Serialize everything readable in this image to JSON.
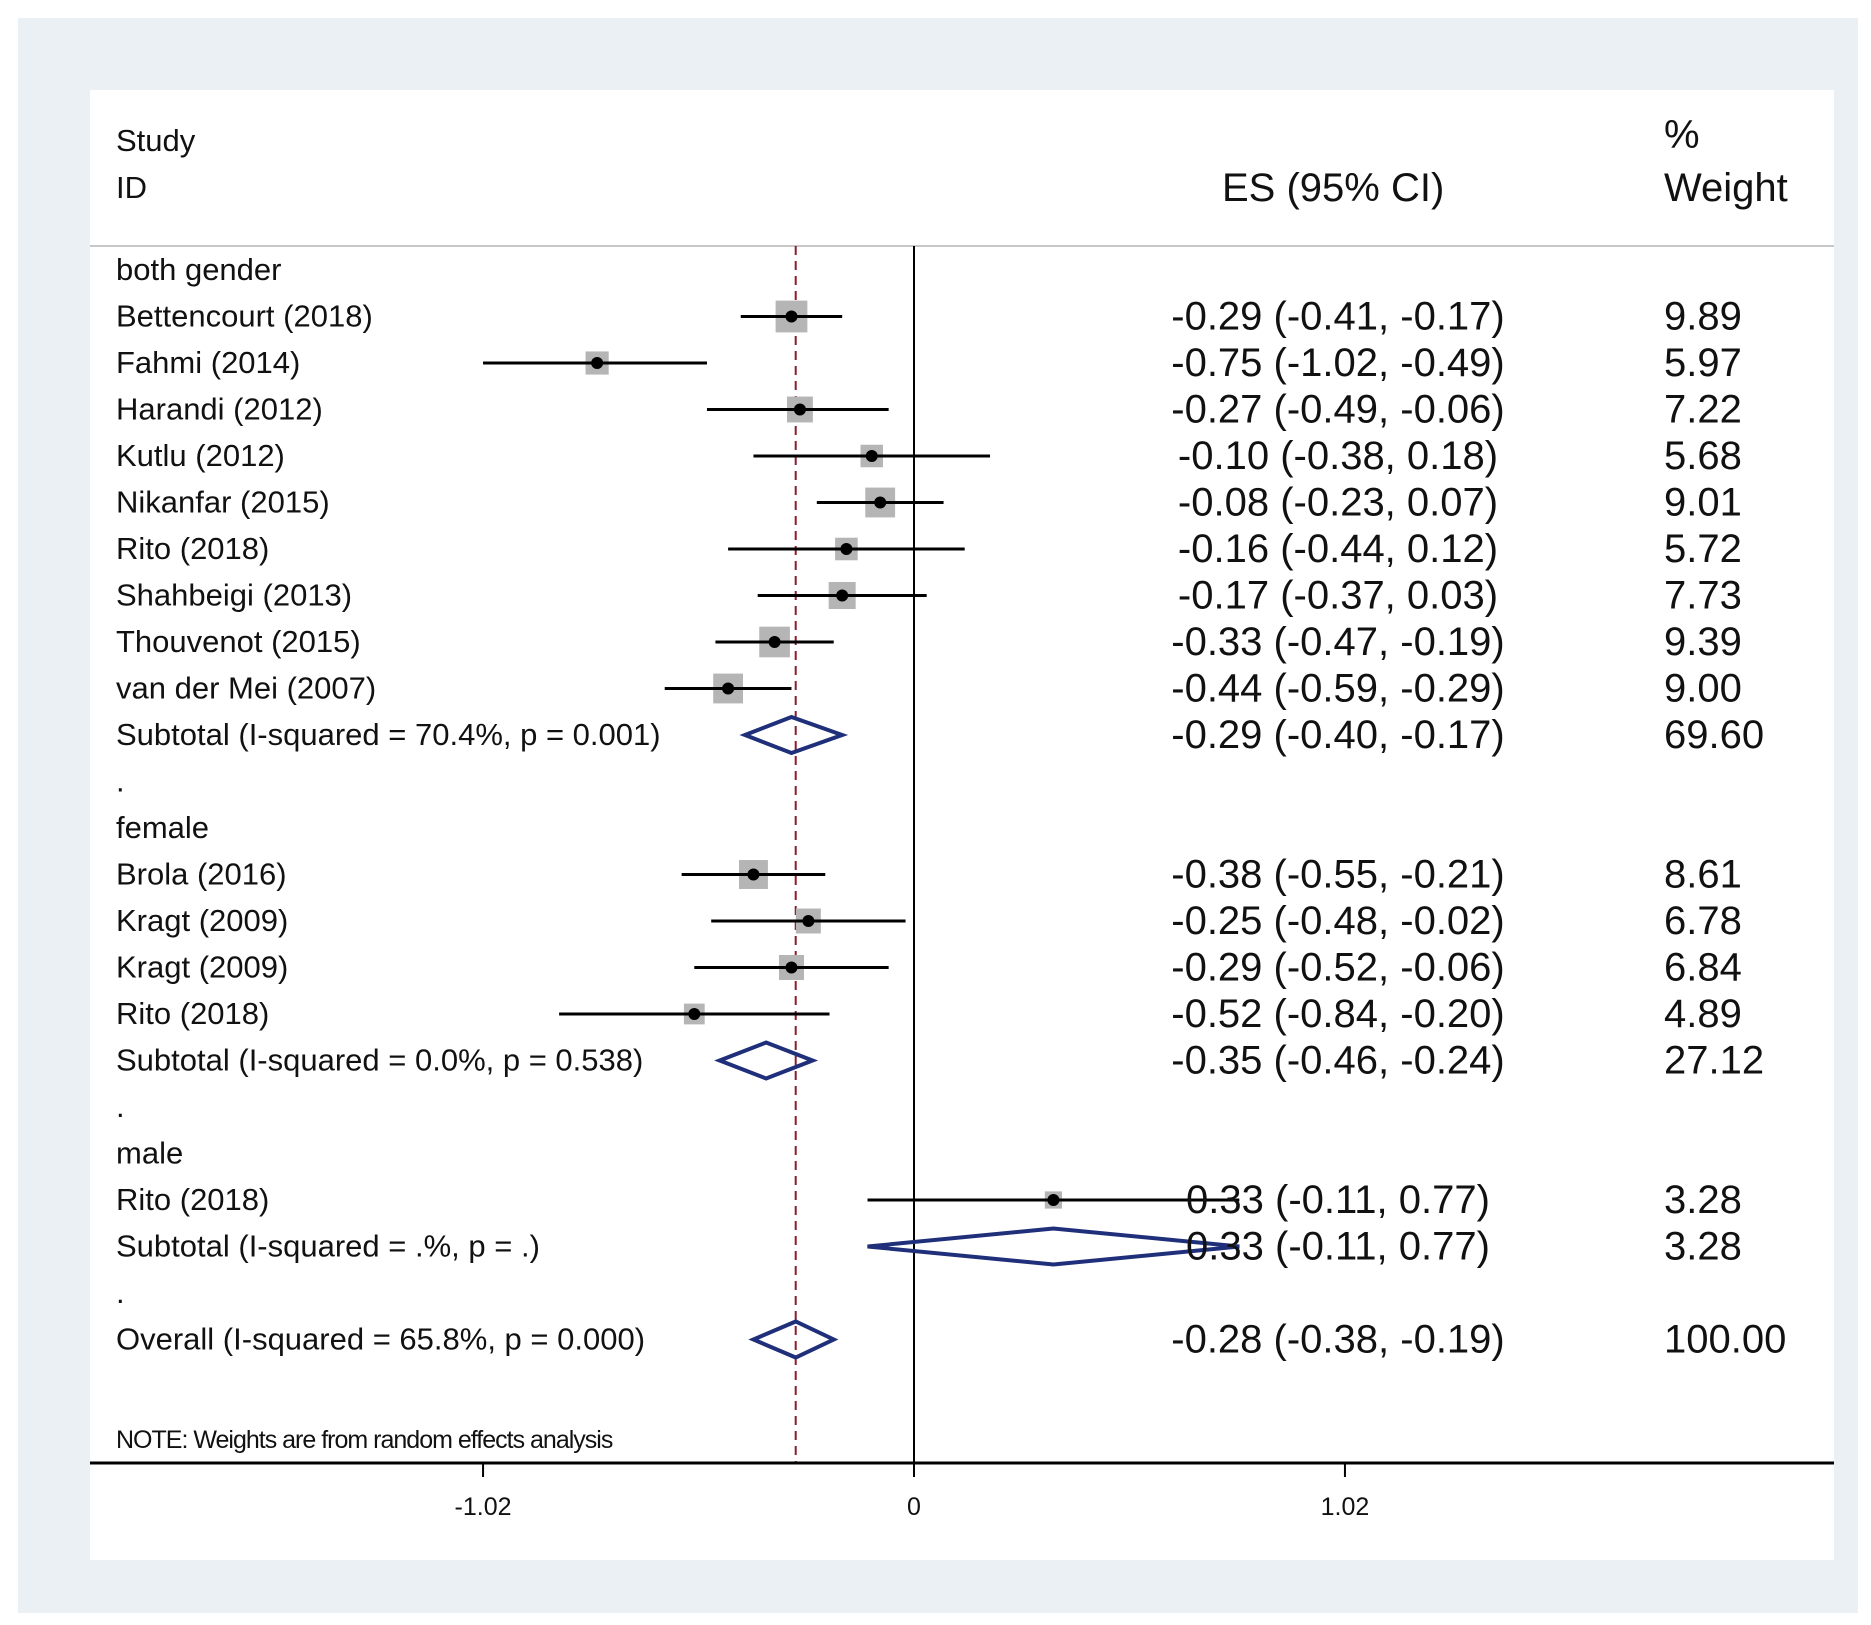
{
  "colors": {
    "panel": "#eaf0f3",
    "plot": "#ffffff",
    "line": "#000000",
    "diamond": "#1f2f7a",
    "pooled_line": "#8b1c2b",
    "weight_box": "#b5b5b5"
  },
  "chart_data": {
    "type": "forest",
    "header": {
      "study_line1": "Study",
      "study_line2": "ID",
      "es": "ES (95% CI)",
      "weight_line1": "%",
      "weight_line2": "Weight"
    },
    "xaxis": {
      "ticks": [
        {
          "value": -1.02,
          "label": "-1.02"
        },
        {
          "value": 0,
          "label": "0"
        },
        {
          "value": 1.02,
          "label": "1.02"
        }
      ],
      "reference": 0,
      "overall_line": -0.28
    },
    "rows": [
      {
        "kind": "group",
        "label": "both gender"
      },
      {
        "kind": "study",
        "label": "Bettencourt  (2018)",
        "es": -0.29,
        "lo": -0.41,
        "hi": -0.17,
        "weight": 9.89,
        "es_text": "-0.29 (-0.41, -0.17)",
        "weight_text": "9.89"
      },
      {
        "kind": "study",
        "label": "Fahmi  (2014)",
        "es": -0.75,
        "lo": -1.02,
        "hi": -0.49,
        "weight": 5.97,
        "es_text": "-0.75 (-1.02, -0.49)",
        "weight_text": "5.97"
      },
      {
        "kind": "study",
        "label": "Harandi  (2012)",
        "es": -0.27,
        "lo": -0.49,
        "hi": -0.06,
        "weight": 7.22,
        "es_text": "-0.27 (-0.49, -0.06)",
        "weight_text": "7.22"
      },
      {
        "kind": "study",
        "label": "Kutlu  (2012)",
        "es": -0.1,
        "lo": -0.38,
        "hi": 0.18,
        "weight": 5.68,
        "es_text": "-0.10 (-0.38, 0.18)",
        "weight_text": "5.68"
      },
      {
        "kind": "study",
        "label": "Nikanfar  (2015)",
        "es": -0.08,
        "lo": -0.23,
        "hi": 0.07,
        "weight": 9.01,
        "es_text": "-0.08 (-0.23, 0.07)",
        "weight_text": "9.01"
      },
      {
        "kind": "study",
        "label": "Rito  (2018)",
        "es": -0.16,
        "lo": -0.44,
        "hi": 0.12,
        "weight": 5.72,
        "es_text": "-0.16 (-0.44, 0.12)",
        "weight_text": "5.72"
      },
      {
        "kind": "study",
        "label": "Shahbeigi  (2013)",
        "es": -0.17,
        "lo": -0.37,
        "hi": 0.03,
        "weight": 7.73,
        "es_text": "-0.17 (-0.37, 0.03)",
        "weight_text": "7.73"
      },
      {
        "kind": "study",
        "label": "Thouvenot  (2015)",
        "es": -0.33,
        "lo": -0.47,
        "hi": -0.19,
        "weight": 9.39,
        "es_text": "-0.33 (-0.47, -0.19)",
        "weight_text": "9.39"
      },
      {
        "kind": "study",
        "label": "van der Mei  (2007)",
        "es": -0.44,
        "lo": -0.59,
        "hi": -0.29,
        "weight": 9.0,
        "es_text": "-0.44 (-0.59, -0.29)",
        "weight_text": "9.00"
      },
      {
        "kind": "subtotal",
        "label": "Subtotal  (I-squared = 70.4%, p = 0.001)",
        "es": -0.29,
        "lo": -0.4,
        "hi": -0.17,
        "weight": 69.6,
        "es_text": "-0.29 (-0.40, -0.17)",
        "weight_text": "69.60"
      },
      {
        "kind": "dot",
        "label": "."
      },
      {
        "kind": "group",
        "label": "female"
      },
      {
        "kind": "study",
        "label": "Brola  (2016)",
        "es": -0.38,
        "lo": -0.55,
        "hi": -0.21,
        "weight": 8.61,
        "es_text": "-0.38 (-0.55, -0.21)",
        "weight_text": "8.61"
      },
      {
        "kind": "study",
        "label": "Kragt  (2009)",
        "es": -0.25,
        "lo": -0.48,
        "hi": -0.02,
        "weight": 6.78,
        "es_text": "-0.25 (-0.48, -0.02)",
        "weight_text": "6.78"
      },
      {
        "kind": "study",
        "label": "Kragt  (2009)",
        "es": -0.29,
        "lo": -0.52,
        "hi": -0.06,
        "weight": 6.84,
        "es_text": "-0.29 (-0.52, -0.06)",
        "weight_text": "6.84"
      },
      {
        "kind": "study",
        "label": "Rito  (2018)",
        "es": -0.52,
        "lo": -0.84,
        "hi": -0.2,
        "weight": 4.89,
        "es_text": "-0.52 (-0.84, -0.20)",
        "weight_text": "4.89"
      },
      {
        "kind": "subtotal",
        "label": "Subtotal  (I-squared = 0.0%, p = 0.538)",
        "es": -0.35,
        "lo": -0.46,
        "hi": -0.24,
        "weight": 27.12,
        "es_text": "-0.35 (-0.46, -0.24)",
        "weight_text": "27.12"
      },
      {
        "kind": "dot",
        "label": "."
      },
      {
        "kind": "group",
        "label": "male"
      },
      {
        "kind": "study",
        "label": "Rito  (2018)",
        "es": 0.33,
        "lo": -0.11,
        "hi": 0.77,
        "weight": 3.28,
        "es_text": "0.33 (-0.11, 0.77)",
        "weight_text": "3.28"
      },
      {
        "kind": "subtotal",
        "label": "Subtotal  (I-squared = .%, p = .)",
        "es": 0.33,
        "lo": -0.11,
        "hi": 0.77,
        "weight": 3.28,
        "es_text": "0.33 (-0.11, 0.77)",
        "weight_text": "3.28"
      },
      {
        "kind": "dot",
        "label": "."
      },
      {
        "kind": "overall",
        "label": "Overall  (I-squared = 65.8%, p = 0.000)",
        "es": -0.28,
        "lo": -0.38,
        "hi": -0.19,
        "weight": 100.0,
        "es_text": "-0.28 (-0.38, -0.19)",
        "weight_text": "100.00"
      }
    ],
    "note": "NOTE: Weights are from random effects analysis"
  }
}
